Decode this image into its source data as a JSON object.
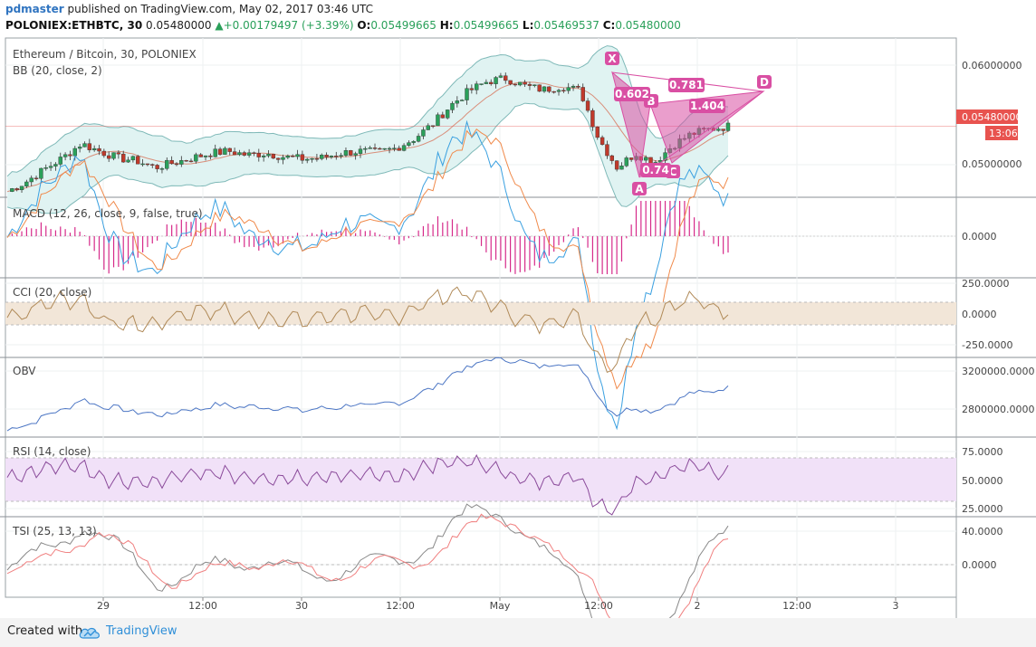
{
  "header": {
    "user": "pdmaster",
    "published_text": "published on TradingView.com, May 02, 2017 03:46 UTC",
    "symbol": "POLONIEX:ETHBTC, 30",
    "last": "0.05480000",
    "change": "▲+0.00179497 (+3.39%)",
    "o_label": "O:",
    "o_value": "0.05499665",
    "h_label": "H:",
    "h_value": "0.05499665",
    "l_label": "L:",
    "l_value": "0.05469537",
    "c_label": "C:",
    "c_value": "0.05480000"
  },
  "panes": {
    "price": {
      "title": "Ethereum / Bitcoin, 30, POLONIEX",
      "indicator": "BB (20, close, 2)",
      "ticks": [
        "0.06000000",
        "0.05000000"
      ],
      "last_price_label": "0.05480000",
      "countdown_label": "13:06"
    },
    "macd": {
      "title": "MACD (12, 26, close, 9, false, true)",
      "ticks": [
        "0.0000"
      ]
    },
    "cci": {
      "title": "CCI (20, close)",
      "ticks": [
        "250.0000",
        "0.0000",
        "-250.0000"
      ]
    },
    "obv": {
      "title": "OBV",
      "ticks": [
        "3200000.0000",
        "2800000.0000"
      ]
    },
    "rsi": {
      "title": "RSI (14, close)",
      "ticks": [
        "75.0000",
        "50.0000",
        "25.0000"
      ]
    },
    "tsi": {
      "title": "TSI (25, 13, 13)",
      "ticks": [
        "40.0000",
        "0.0000"
      ]
    }
  },
  "time_axis": {
    "labels": [
      "29",
      "12:00",
      "30",
      "12:00",
      "May",
      "12:00",
      "2",
      "12:00",
      "3"
    ]
  },
  "pattern": {
    "points": [
      "X",
      "A",
      "B",
      "C",
      "D"
    ],
    "ratios": [
      "0.602",
      "0.781",
      "1.404",
      "0.74"
    ]
  },
  "footer": {
    "created_with": "Created with",
    "brand": "TradingView"
  },
  "colors": {
    "up": "#2aa05a",
    "down": "#c0392b",
    "bb_fill": "#e0f3f2",
    "bb_line": "#7fb9b8",
    "macd_line": "#3aa0e0",
    "signal_line": "#f08a4b",
    "histogram": "#d62a8a",
    "cci_line": "#b08a58",
    "cci_band": "#f2e6d8",
    "obv_line": "#4c76c4",
    "rsi_line": "#8a4a9a",
    "rsi_band": "#f1e1f8",
    "tsi_line": "#888888",
    "tsi_signal": "#f08080",
    "pattern": "#d94fa3",
    "last_price": "#e8534f"
  },
  "chart_data": [
    {
      "type": "candlestick",
      "pane": "price",
      "title": "Ethereum / Bitcoin, 30, POLONIEX",
      "series": [
        {
          "name": "close",
          "values": [
            0.048,
            0.049,
            0.0503,
            0.0515,
            0.053,
            0.0522,
            0.0515,
            0.0512,
            0.0505,
            0.051,
            0.0515,
            0.052,
            0.0522,
            0.0518,
            0.052,
            0.0516,
            0.0514,
            0.0515,
            0.052,
            0.0522,
            0.0521,
            0.0525,
            0.0535,
            0.055,
            0.057,
            0.0585,
            0.0595,
            0.0598,
            0.059,
            0.0586,
            0.059,
            0.0585,
            0.0535,
            0.0505,
            0.052,
            0.051,
            0.0528,
            0.054,
            0.0545,
            0.0548
          ]
        },
        {
          "name": "BB",
          "values": []
        }
      ],
      "ylim": [
        0.0475,
        0.064
      ]
    },
    {
      "type": "line",
      "pane": "macd",
      "series": [
        {
          "name": "MACD"
        },
        {
          "name": "signal"
        },
        {
          "name": "histogram"
        }
      ]
    },
    {
      "type": "line",
      "pane": "cci",
      "ylim": [
        -300,
        300
      ]
    },
    {
      "type": "line",
      "pane": "obv",
      "ylim": [
        2700000,
        3300000
      ]
    },
    {
      "type": "line",
      "pane": "rsi",
      "ylim": [
        20,
        85
      ]
    },
    {
      "type": "line",
      "pane": "tsi",
      "ylim": [
        -25,
        50
      ]
    }
  ]
}
